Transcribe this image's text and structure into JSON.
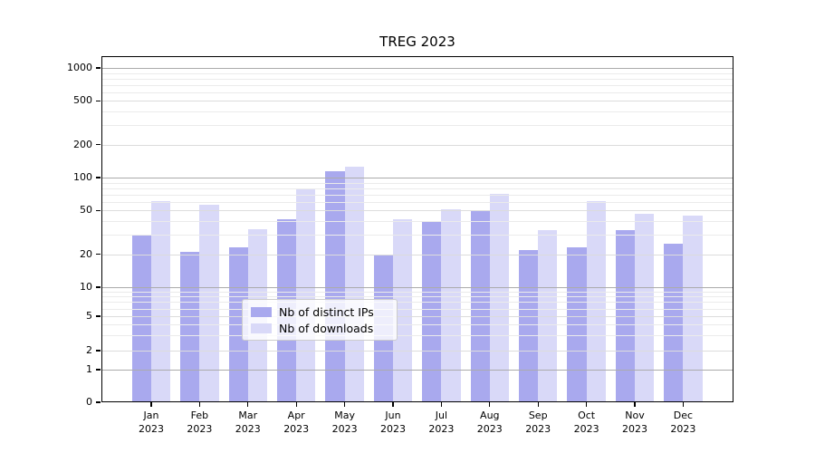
{
  "chart_data": {
    "type": "bar",
    "title": "TREG 2023",
    "months": [
      "Jan",
      "Feb",
      "Mar",
      "Apr",
      "May",
      "Jun",
      "Jul",
      "Aug",
      "Sep",
      "Oct",
      "Nov",
      "Dec"
    ],
    "year": "2023",
    "yticks": [
      "1000",
      "500",
      "200",
      "100",
      "50",
      "20",
      "10",
      "5",
      "2",
      "1",
      "0"
    ],
    "ytick_values": [
      1000,
      500,
      200,
      100,
      50,
      20,
      10,
      5,
      2,
      1,
      0
    ],
    "yscale": "log-above-1 with compressed 1-10 decade and linear 0-1 region (symlog-like)",
    "ylim": [
      0,
      1500
    ],
    "grid": "horizontal major gridlines at powers of 10, lighter lines at 2x/5x, faint minor lines; drawn over bars",
    "legend_position": "lower center",
    "series": [
      {
        "name": "Nb of distinct IPs",
        "color": "#a9a9ee",
        "values": [
          30,
          21,
          23,
          42,
          115,
          20,
          39,
          50,
          22,
          23,
          33,
          25
        ]
      },
      {
        "name": "Nb of downloads",
        "color": "#d9d9f8",
        "values": [
          61,
          57,
          34,
          80,
          125,
          42,
          51,
          71,
          33,
          61,
          47,
          45
        ]
      }
    ]
  },
  "colors": {
    "grid_major": "#ababab",
    "grid_mid": "#dcdcdc",
    "grid_minor": "#ebebeb",
    "axis": "#000000"
  }
}
